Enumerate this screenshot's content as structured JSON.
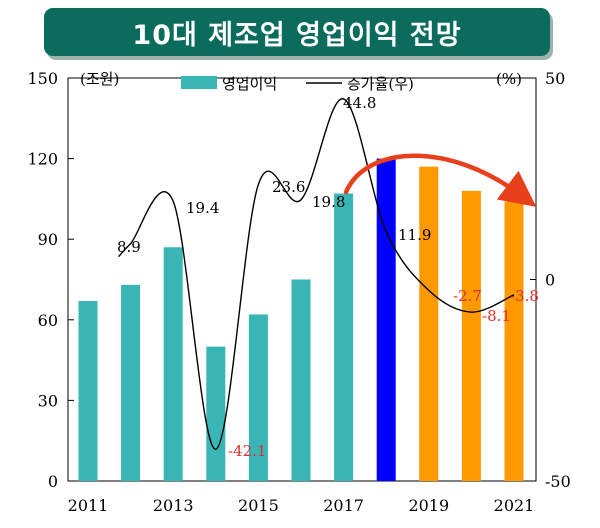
{
  "title": "10대 제조업 영업이익 전망",
  "chart_data": {
    "type": "bar",
    "x": [
      2011,
      2012,
      2013,
      2014,
      2015,
      2016,
      2017,
      2018,
      2019,
      2020,
      2021
    ],
    "x_tick_labels": [
      "2011",
      "2013",
      "2015",
      "2017",
      "2019",
      "2021"
    ],
    "series": [
      {
        "name": "영업이익",
        "type": "bar",
        "axis": "left",
        "values": [
          67,
          73,
          87,
          50,
          62,
          75,
          107,
          120,
          117,
          108,
          104
        ],
        "colors": [
          "#39b5b5",
          "#39b5b5",
          "#39b5b5",
          "#39b5b5",
          "#39b5b5",
          "#39b5b5",
          "#39b5b5",
          "#0000ff",
          "#ff9900",
          "#ff9900",
          "#ff9900"
        ]
      },
      {
        "name": "증가율(우)",
        "type": "line",
        "axis": "right",
        "color": "#000000",
        "x": [
          2012,
          2013,
          2014,
          2015,
          2016,
          2017,
          2018,
          2019,
          2020,
          2021
        ],
        "values": [
          8.9,
          19.4,
          -42.1,
          23.6,
          19.8,
          44.8,
          11.9,
          -2.7,
          -8.1,
          -3.8
        ]
      }
    ],
    "data_labels": [
      {
        "text": "8.9",
        "color": "#000000"
      },
      {
        "text": "19.4",
        "color": "#000000"
      },
      {
        "text": "-42.1",
        "color": "#e03030"
      },
      {
        "text": "23.6",
        "color": "#000000"
      },
      {
        "text": "19.8",
        "color": "#000000"
      },
      {
        "text": "44.8",
        "color": "#000000"
      },
      {
        "text": "11.9",
        "color": "#000000"
      },
      {
        "text": "-2.7",
        "color": "#e03030"
      },
      {
        "text": "-8.1",
        "color": "#e03030"
      },
      {
        "text": "-3.8",
        "color": "#e03030"
      }
    ],
    "left_axis": {
      "unit": "(조원)",
      "ylim": [
        0,
        150
      ],
      "ticks": [
        0,
        30,
        60,
        90,
        120,
        150
      ]
    },
    "right_axis": {
      "unit": "(%)",
      "ylim": [
        -50,
        50
      ],
      "ticks": [
        -50,
        0,
        50
      ]
    },
    "legend": {
      "position": "top"
    },
    "trend_arrow_color": "#e8401c"
  }
}
